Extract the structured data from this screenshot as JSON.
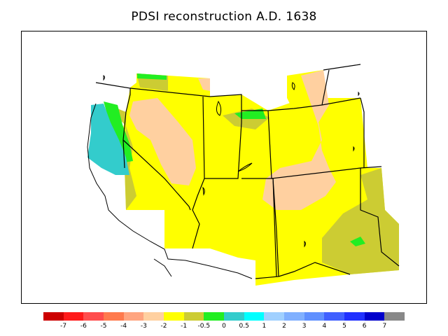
{
  "title": "PDSI reconstruction A.D. 1638",
  "legend": {
    "colors": [
      "#cc0000",
      "#ff1a1a",
      "#ff4d4d",
      "#ff7a4d",
      "#ffa580",
      "#ffd0a0",
      "#ffff00",
      "#cccc33",
      "#22ee22",
      "#33cccc",
      "#00ffff",
      "#a0d0ff",
      "#80b0ff",
      "#6090ff",
      "#4060ff",
      "#2030ff",
      "#0000cc",
      "#888888"
    ],
    "ticks": [
      "-7",
      "-6",
      "-5",
      "-4",
      "-3",
      "-2",
      "-1",
      "-0.5",
      "0",
      "0.5",
      "1",
      "2",
      "3",
      "4",
      "5",
      "6",
      "7"
    ]
  }
}
